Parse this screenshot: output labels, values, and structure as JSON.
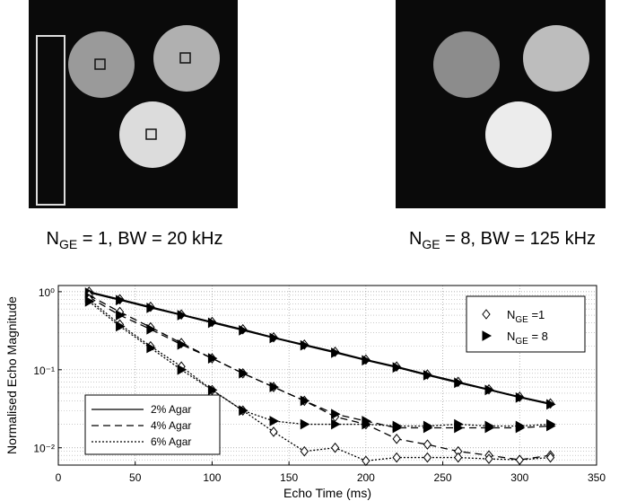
{
  "images": [
    {
      "caption": {
        "main": "N",
        "sub": "GE",
        "rest": " = 1, BW = 20 kHz"
      }
    },
    {
      "caption": {
        "main": "N",
        "sub": "GE",
        "rest": " = 8, BW = 125 kHz"
      }
    }
  ],
  "chart_data": {
    "type": "line",
    "log_y": true,
    "grid": true,
    "xlabel": "Echo Time (ms)",
    "ylabel": "Normalised Echo Magnitude",
    "xlim": [
      0,
      350
    ],
    "xticks": [
      0,
      50,
      100,
      150,
      200,
      250,
      300,
      350
    ],
    "ylim": [
      0.006,
      1.2
    ],
    "yticks": [
      {
        "value": 1,
        "label": "10⁰"
      },
      {
        "value": 0.1,
        "label": "10⁻¹"
      },
      {
        "value": 0.01,
        "label": "10⁻²"
      }
    ],
    "x": [
      20,
      40,
      60,
      80,
      100,
      120,
      140,
      160,
      180,
      200,
      220,
      240,
      260,
      280,
      300,
      320
    ],
    "line_legend": [
      {
        "name": "2% Agar",
        "dash": "solid"
      },
      {
        "name": "4% Agar",
        "dash": "dashed"
      },
      {
        "name": "6% Agar",
        "dash": "dotted"
      }
    ],
    "marker_legend": [
      {
        "main": "N",
        "sub": "GE",
        "rest": " =1",
        "marker": "diamond"
      },
      {
        "main": "N",
        "sub": "GE",
        "rest": " = 8",
        "marker": "triangle"
      }
    ],
    "series": [
      {
        "dash": "solid",
        "marker": "diamond",
        "color": "#000000",
        "values": [
          1.0,
          0.8,
          0.64,
          0.51,
          0.41,
          0.33,
          0.26,
          0.21,
          0.17,
          0.135,
          0.11,
          0.087,
          0.07,
          0.056,
          0.045,
          0.037
        ]
      },
      {
        "dash": "solid",
        "marker": "triangle",
        "color": "#000000",
        "values": [
          0.97,
          0.78,
          0.62,
          0.5,
          0.4,
          0.32,
          0.255,
          0.205,
          0.165,
          0.132,
          0.107,
          0.085,
          0.068,
          0.055,
          0.044,
          0.036
        ]
      },
      {
        "dash": "dashed",
        "marker": "diamond",
        "color": "#000000",
        "values": [
          0.9,
          0.55,
          0.35,
          0.22,
          0.14,
          0.09,
          0.06,
          0.04,
          0.025,
          0.02,
          0.013,
          0.011,
          0.009,
          0.008,
          0.007,
          0.008
        ]
      },
      {
        "dash": "dashed",
        "marker": "triangle",
        "color": "#000000",
        "values": [
          0.85,
          0.5,
          0.33,
          0.21,
          0.14,
          0.09,
          0.06,
          0.04,
          0.027,
          0.022,
          0.018,
          0.018,
          0.018,
          0.018,
          0.018,
          0.019
        ]
      },
      {
        "dash": "dotted",
        "marker": "diamond",
        "color": "#000000",
        "values": [
          0.8,
          0.38,
          0.2,
          0.11,
          0.055,
          0.03,
          0.016,
          0.009,
          0.01,
          0.0068,
          0.0075,
          0.0075,
          0.0075,
          0.0072,
          0.007,
          0.0075
        ]
      },
      {
        "dash": "dotted",
        "marker": "triangle",
        "color": "#000000",
        "values": [
          0.75,
          0.36,
          0.19,
          0.1,
          0.055,
          0.03,
          0.022,
          0.02,
          0.02,
          0.02,
          0.019,
          0.019,
          0.02,
          0.019,
          0.019,
          0.02
        ]
      }
    ]
  }
}
